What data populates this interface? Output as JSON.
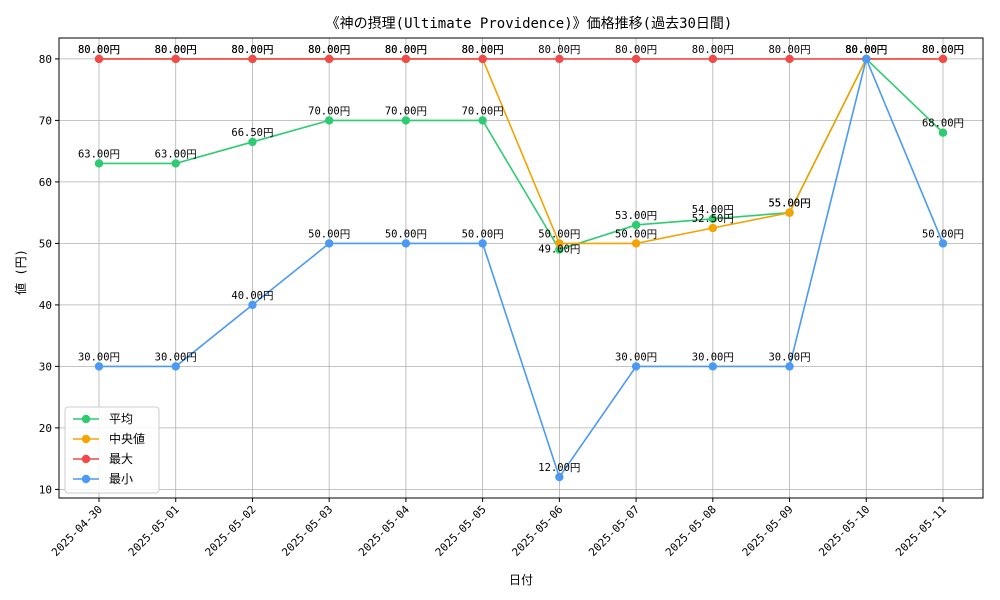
{
  "chart_data": {
    "type": "line",
    "title": "《神の摂理(Ultimate Providence)》価格推移(過去30日間)",
    "xlabel": "日付",
    "ylabel": "値 (円)",
    "ylim": [
      8.6,
      83.4
    ],
    "yticks": [
      10,
      20,
      30,
      40,
      50,
      60,
      70,
      80
    ],
    "grid": true,
    "legend_position": "lower-left",
    "value_suffix": "円",
    "categories": [
      "2025-04-30",
      "2025-05-01",
      "2025-05-02",
      "2025-05-03",
      "2025-05-04",
      "2025-05-05",
      "2025-05-06",
      "2025-05-07",
      "2025-05-08",
      "2025-05-09",
      "2025-05-10",
      "2025-05-11"
    ],
    "series": [
      {
        "name": "平均",
        "color": "#2ecc71",
        "values": [
          63,
          63,
          66.5,
          70,
          70,
          70,
          49,
          53,
          54,
          55,
          80,
          68
        ],
        "label_offsets": [
          -6,
          -6,
          -6,
          -6,
          -6,
          -6,
          3,
          -6,
          -6,
          -6,
          -6,
          -6
        ]
      },
      {
        "name": "中央値",
        "color": "#f5a300",
        "values": [
          80,
          80,
          80,
          80,
          80,
          80,
          50,
          50,
          52.5,
          55,
          80,
          80
        ],
        "label_offsets": [
          -6,
          -6,
          -6,
          -6,
          -6,
          -6,
          -6,
          -6,
          -6,
          -6,
          -6,
          -6
        ]
      },
      {
        "name": "最大",
        "color": "#f04a4a",
        "values": [
          80,
          80,
          80,
          80,
          80,
          80,
          80,
          80,
          80,
          80,
          80,
          80
        ],
        "label_offsets": [
          -6,
          -6,
          -6,
          -6,
          -6,
          -6,
          -6,
          -6,
          -6,
          -6,
          -6,
          -6
        ]
      },
      {
        "name": "最小",
        "color": "#4a9af5",
        "values": [
          30,
          30,
          40,
          50,
          50,
          50,
          12,
          30,
          30,
          30,
          80,
          50
        ],
        "label_offsets": [
          -6,
          -6,
          -6,
          -6,
          -6,
          -6,
          -6,
          -6,
          -6,
          -6,
          -6,
          -6
        ]
      }
    ]
  }
}
